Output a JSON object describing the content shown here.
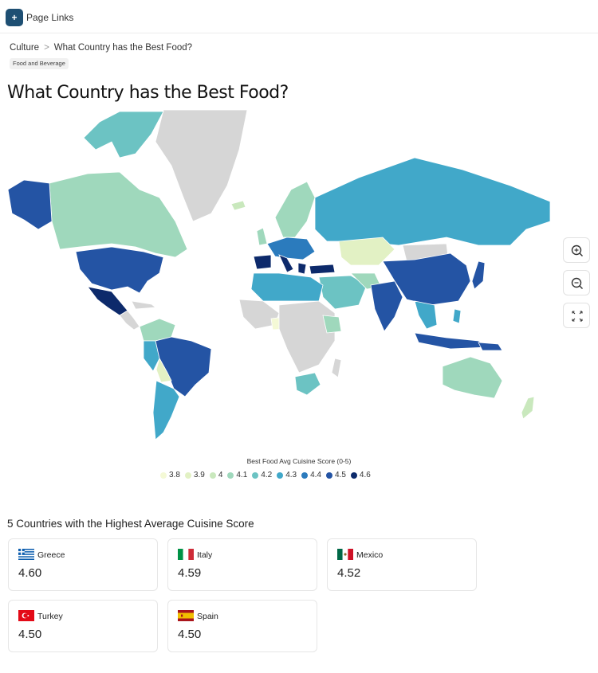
{
  "topbar": {
    "page_links_label": "Page Links",
    "plus_label": "+"
  },
  "breadcrumb": {
    "items": [
      "Culture",
      "What Country has the Best Food?"
    ],
    "separator": ">"
  },
  "tag": "Food and Beverage",
  "title": "What Country has the Best Food?",
  "map": {
    "legend_title": "Best Food Avg Cuisine Score (0-5)",
    "legend": [
      {
        "label": "3.8",
        "color": "#f4f9d6"
      },
      {
        "label": "3.9",
        "color": "#e2f1c4"
      },
      {
        "label": "4",
        "color": "#c9e8bd"
      },
      {
        "label": "4.1",
        "color": "#9fd8bc"
      },
      {
        "label": "4.2",
        "color": "#6cc3c3"
      },
      {
        "label": "4.3",
        "color": "#41a8c9"
      },
      {
        "label": "4.4",
        "color": "#2b7bbd"
      },
      {
        "label": "4.5",
        "color": "#2454a4"
      },
      {
        "label": "4.6",
        "color": "#0d2a6b"
      }
    ],
    "no_data_color": "#d6d6d6",
    "controls": [
      "zoom-in-icon",
      "zoom-out-icon",
      "fullscreen-icon"
    ]
  },
  "top5": {
    "title": "5 Countries with the Highest Average Cuisine Score",
    "cards": [
      {
        "country": "Greece",
        "score": "4.60",
        "flag": "greece-flag-icon"
      },
      {
        "country": "Italy",
        "score": "4.59",
        "flag": "italy-flag-icon"
      },
      {
        "country": "Mexico",
        "score": "4.52",
        "flag": "mexico-flag-icon"
      },
      {
        "country": "Turkey",
        "score": "4.50",
        "flag": "turkey-flag-icon"
      },
      {
        "country": "Spain",
        "score": "4.50",
        "flag": "spain-flag-icon"
      }
    ]
  }
}
